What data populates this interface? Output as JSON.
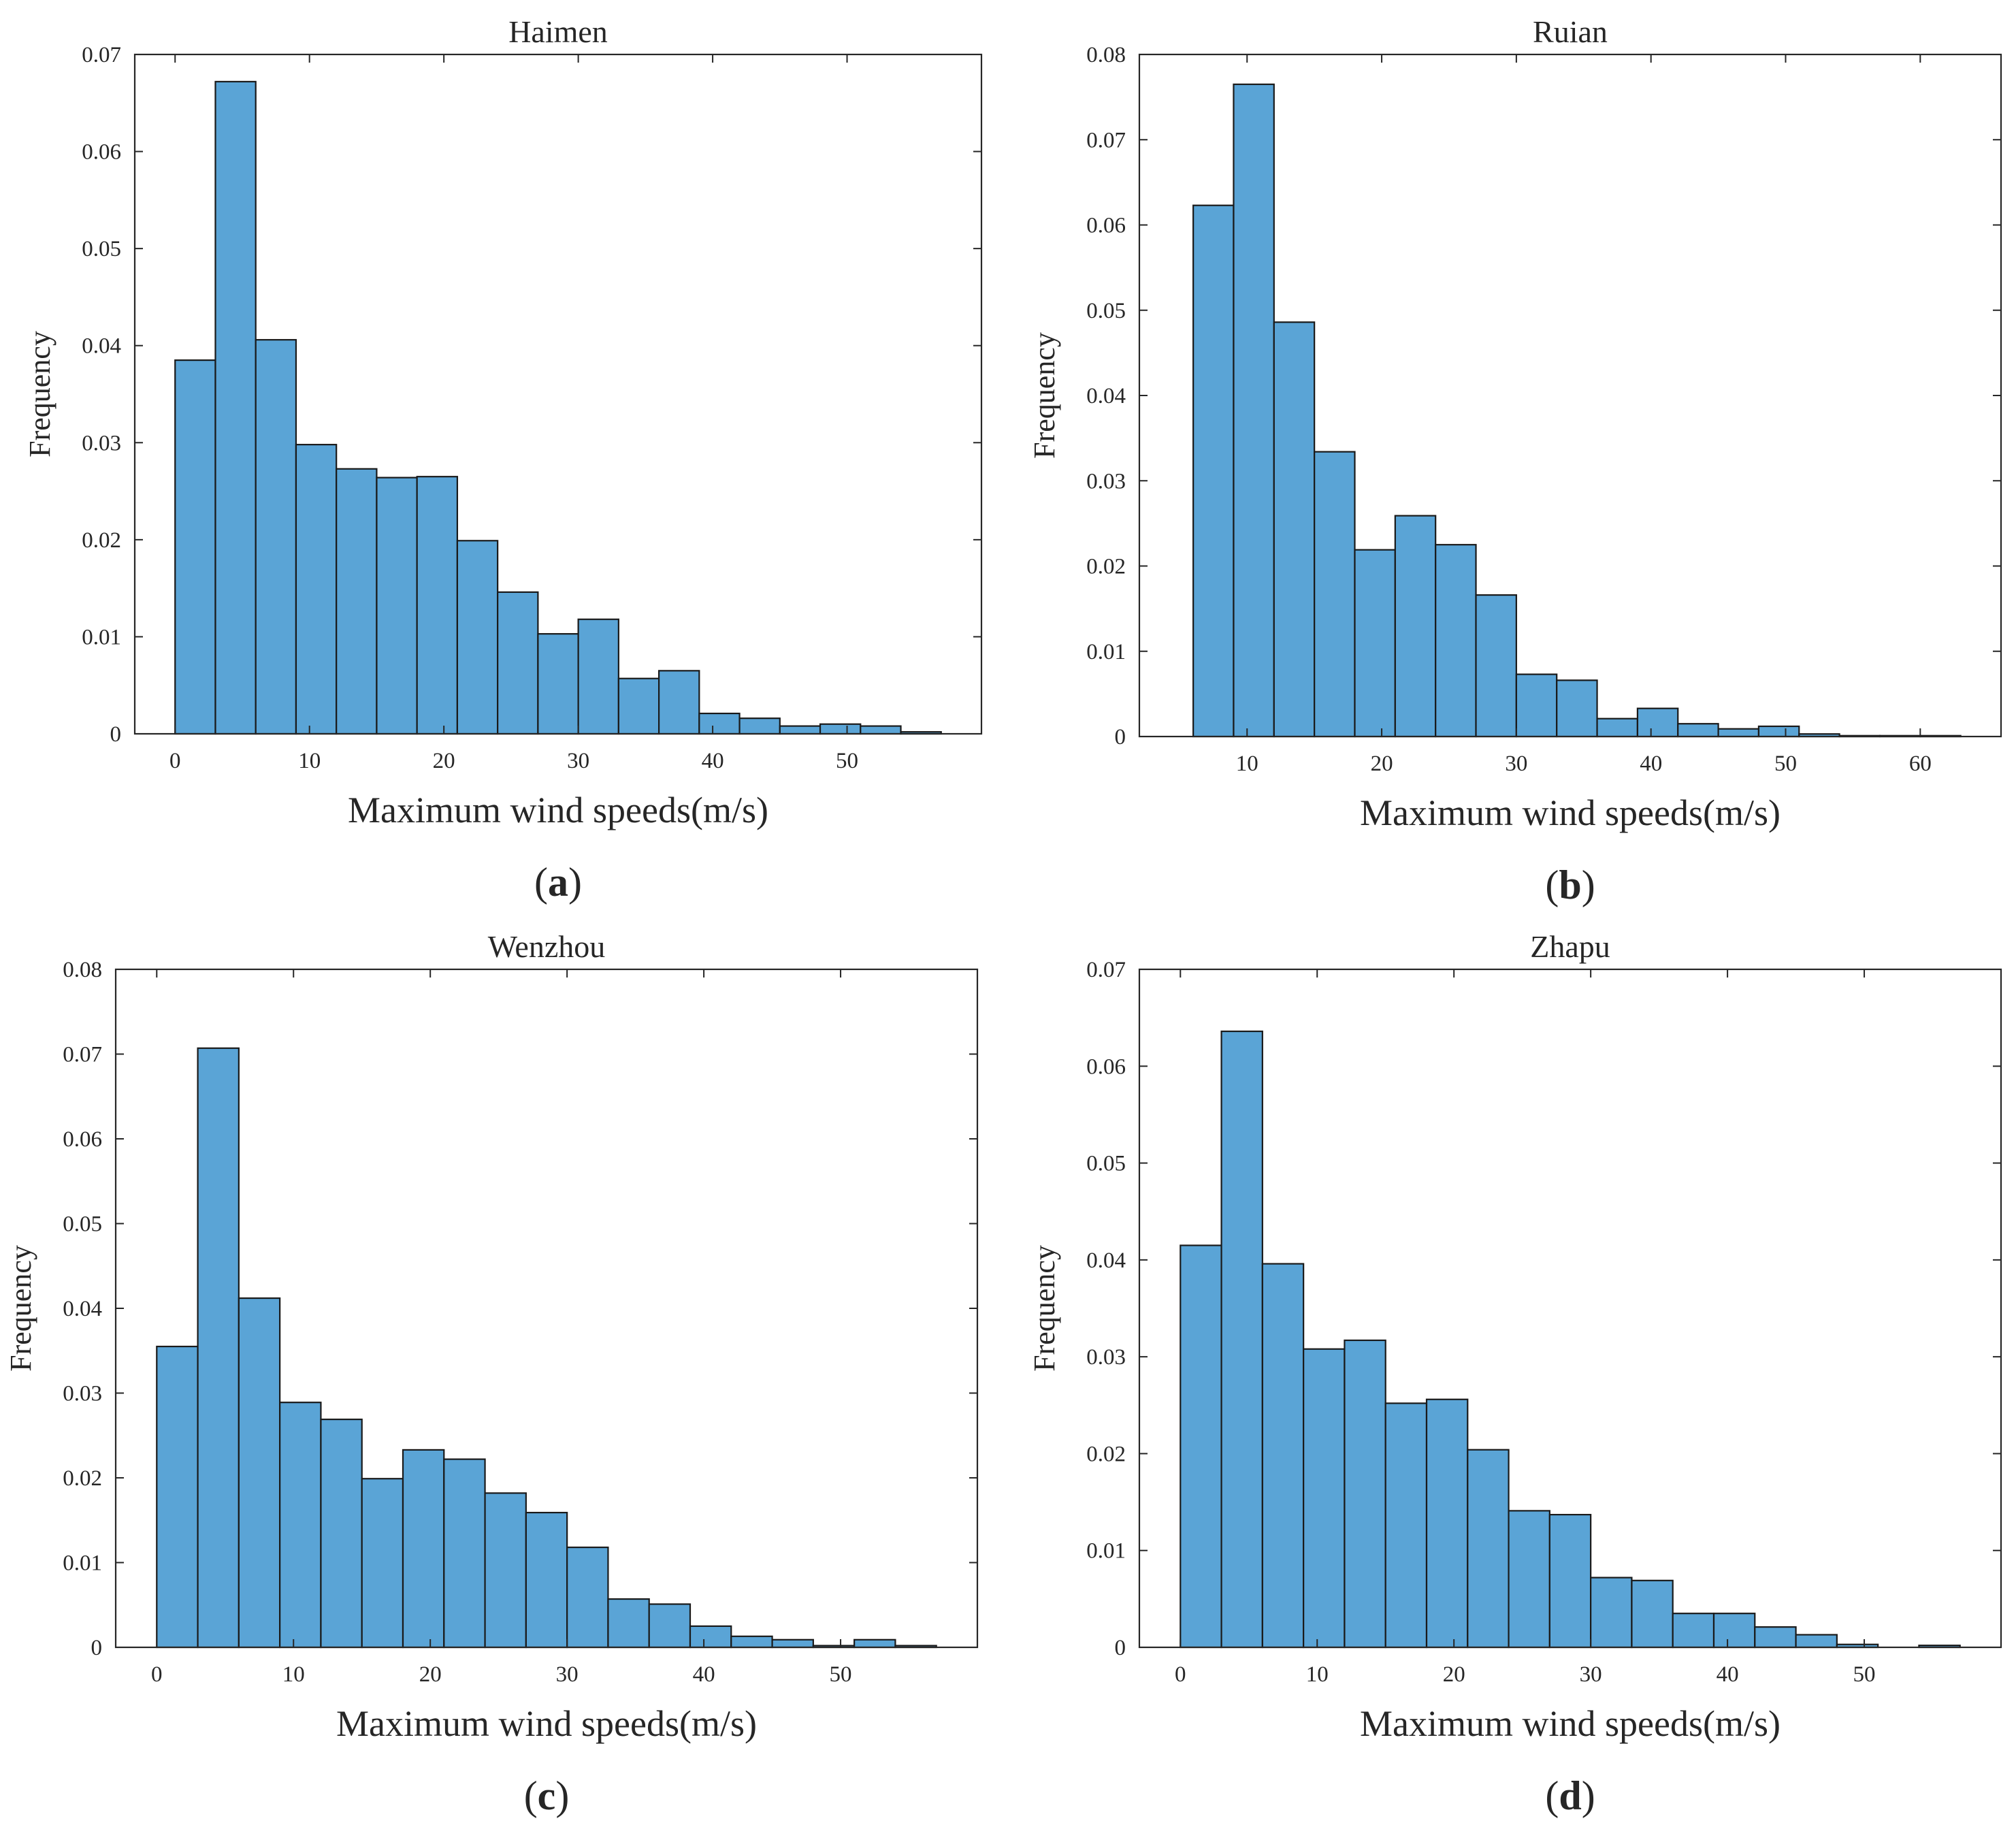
{
  "figure": {
    "colors": {
      "bar_fill": "#5aa4d6",
      "bar_stroke": "#1a1a1a",
      "axis": "#262626",
      "text": "#262626"
    },
    "chart_data": [
      {
        "panel": "a",
        "type": "bar",
        "title": "Haimen",
        "caption": "(a)",
        "caption_letter": "a",
        "xlabel": "Maximum wind speeds(m/s)",
        "ylabel": "Frequency",
        "xlim": [
          -3,
          60
        ],
        "ylim": [
          0,
          0.07
        ],
        "xticks": [
          0,
          10,
          20,
          30,
          40,
          50
        ],
        "yticks": [
          0,
          0.01,
          0.02,
          0.03,
          0.04,
          0.05,
          0.06,
          0.07
        ],
        "ytick_labels": [
          "0",
          "0.01",
          "0.02",
          "0.03",
          "0.04",
          "0.05",
          "0.06",
          "0.07"
        ],
        "bin_start": 0,
        "bin_width": 3,
        "values": [
          0.0385,
          0.0672,
          0.0406,
          0.0298,
          0.0273,
          0.0264,
          0.0265,
          0.0199,
          0.0146,
          0.0103,
          0.0118,
          0.0057,
          0.0065,
          0.0021,
          0.0016,
          0.0008,
          0.001,
          0.0008,
          0.0002
        ]
      },
      {
        "panel": "b",
        "type": "bar",
        "title": "Ruian",
        "caption": "(b)",
        "caption_letter": "b",
        "xlabel": "Maximum wind speeds(m/s)",
        "ylabel": "Frequency",
        "xlim": [
          2,
          66
        ],
        "ylim": [
          0,
          0.08
        ],
        "xticks": [
          10,
          20,
          30,
          40,
          50,
          60
        ],
        "yticks": [
          0,
          0.01,
          0.02,
          0.03,
          0.04,
          0.05,
          0.06,
          0.07,
          0.08
        ],
        "ytick_labels": [
          "0",
          "0.01",
          "0.02",
          "0.03",
          "0.04",
          "0.05",
          "0.06",
          "0.07",
          "0.08"
        ],
        "bin_start": 6,
        "bin_width": 3,
        "values": [
          0.0623,
          0.0765,
          0.0486,
          0.0334,
          0.0219,
          0.0259,
          0.0225,
          0.0166,
          0.0073,
          0.0066,
          0.0021,
          0.0033,
          0.0015,
          0.0009,
          0.0012,
          0.0003,
          0.0001,
          0.0001,
          0.0001
        ]
      },
      {
        "panel": "c",
        "type": "bar",
        "title": "Wenzhou",
        "caption": "(c)",
        "caption_letter": "c",
        "xlabel": "Maximum wind speeds(m/s)",
        "ylabel": "Frequency",
        "xlim": [
          -3,
          60
        ],
        "ylim": [
          0,
          0.08
        ],
        "xticks": [
          0,
          10,
          20,
          30,
          40,
          50
        ],
        "yticks": [
          0,
          0.01,
          0.02,
          0.03,
          0.04,
          0.05,
          0.06,
          0.07,
          0.08
        ],
        "ytick_labels": [
          "0",
          "0.01",
          "0.02",
          "0.03",
          "0.04",
          "0.05",
          "0.06",
          "0.07",
          "0.08"
        ],
        "bin_start": 0,
        "bin_width": 3,
        "values": [
          0.0355,
          0.0707,
          0.0412,
          0.0289,
          0.0269,
          0.0199,
          0.0233,
          0.0222,
          0.0182,
          0.0159,
          0.0118,
          0.0057,
          0.0051,
          0.0025,
          0.0013,
          0.0009,
          0.0002,
          0.0009,
          0.0002
        ]
      },
      {
        "panel": "d",
        "type": "bar",
        "title": "Zhapu",
        "caption": "(d)",
        "caption_letter": "d",
        "xlabel": "Maximum wind speeds(m/s)",
        "ylabel": "Frequency",
        "xlim": [
          -3,
          60
        ],
        "ylim": [
          0,
          0.07
        ],
        "xticks": [
          0,
          10,
          20,
          30,
          40,
          50
        ],
        "yticks": [
          0,
          0.01,
          0.02,
          0.03,
          0.04,
          0.05,
          0.06,
          0.07
        ],
        "ytick_labels": [
          "0",
          "0.01",
          "0.02",
          "0.03",
          "0.04",
          "0.05",
          "0.06",
          "0.07"
        ],
        "bin_start": 0,
        "bin_width": 3,
        "values": [
          0.0415,
          0.0636,
          0.0396,
          0.0308,
          0.0317,
          0.0252,
          0.0256,
          0.0204,
          0.0141,
          0.0137,
          0.0072,
          0.0069,
          0.0035,
          0.0035,
          0.0021,
          0.0013,
          0.0003,
          0.0,
          0.0002
        ]
      }
    ]
  }
}
